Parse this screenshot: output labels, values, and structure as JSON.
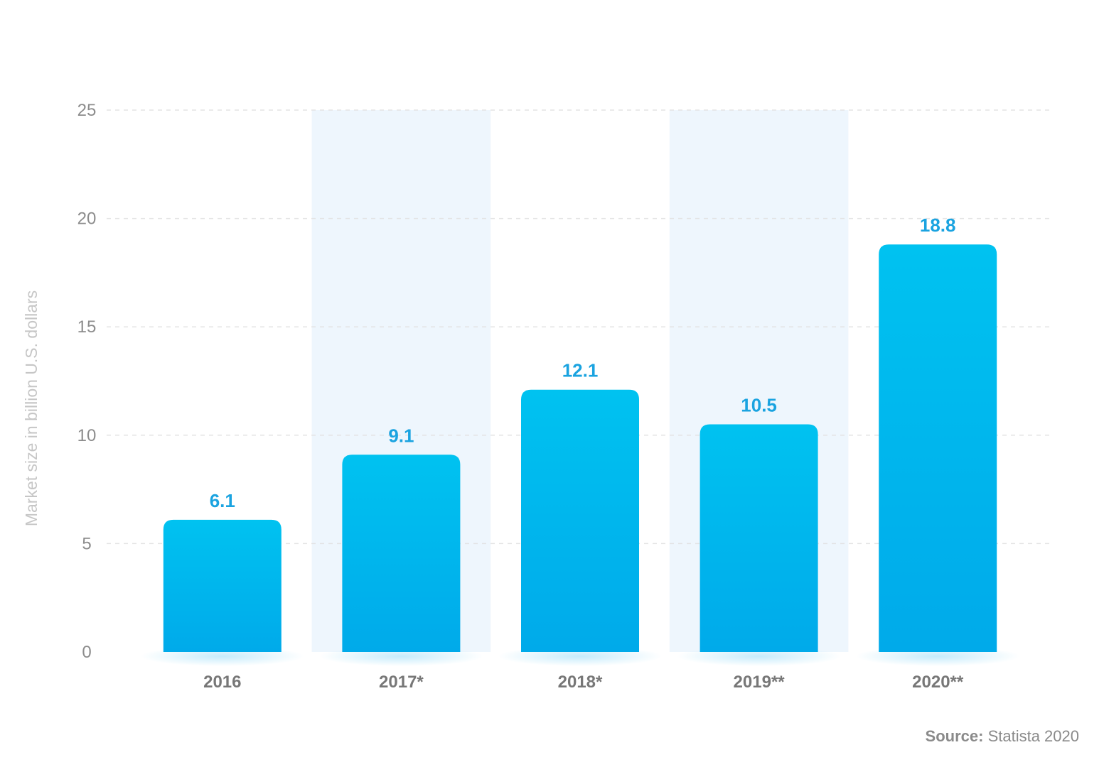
{
  "chart_data": {
    "type": "bar",
    "categories": [
      "2016",
      "2017*",
      "2018*",
      "2019**",
      "2020**"
    ],
    "values": [
      6.1,
      9.1,
      12.1,
      10.5,
      18.8
    ],
    "value_labels": [
      "6.1",
      "9.1",
      "12.1",
      "10.5",
      "18.8"
    ],
    "title": "",
    "xlabel": "",
    "ylabel": "Market size in billion U.S. dollars",
    "ylim": [
      0,
      25
    ],
    "yticks": [
      "0",
      "5",
      "10",
      "15",
      "20",
      "25"
    ],
    "grid": true,
    "legend": "none",
    "colors": {
      "bar_top": "#00c2f0",
      "bar_bottom": "#00aaea",
      "band": "#eef6fd",
      "value_label": "#1aa3e0",
      "gridline": "#e3e3e3"
    }
  },
  "source": {
    "label": "Source:",
    "text": "Statista 2020"
  }
}
